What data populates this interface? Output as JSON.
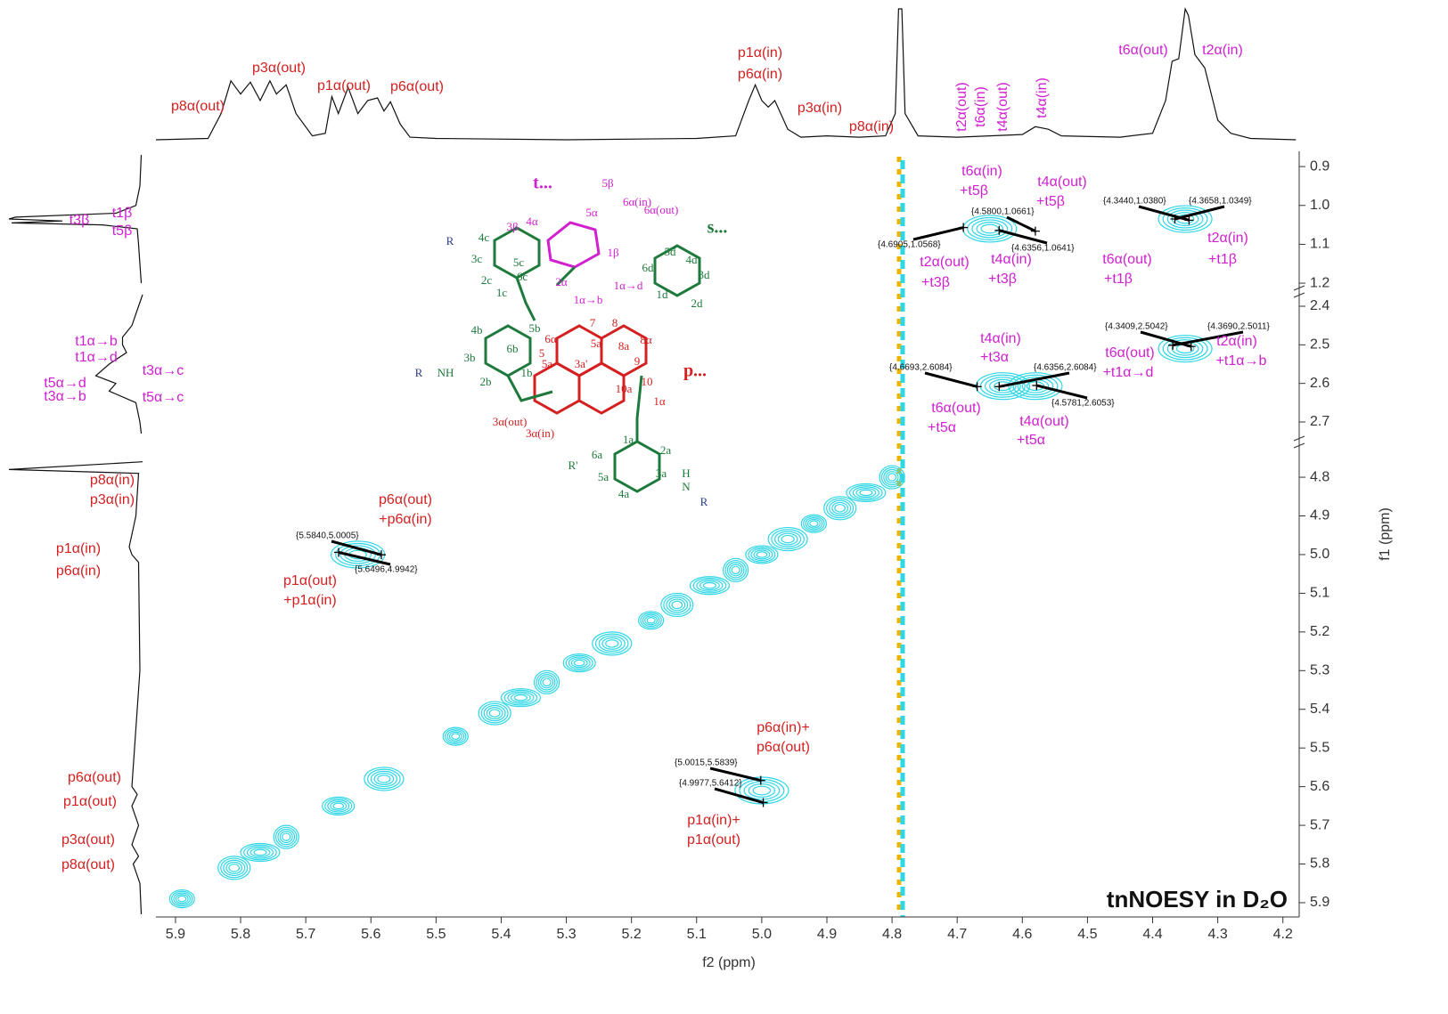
{
  "chart_data": {
    "type": "nmr2d",
    "title": "tnNOESY in D₂O",
    "xlabel": "f2 (ppm)",
    "ylabel": "f1 (ppm)",
    "xlim": [
      5.93,
      4.175
    ],
    "xticks": [
      5.9,
      5.8,
      5.7,
      5.6,
      5.5,
      5.4,
      5.3,
      5.2,
      5.1,
      {
        "value": 5,
        "label": "5.0"
      },
      4.9,
      4.8,
      4.7,
      4.6,
      4.5,
      4.4,
      4.3,
      4.2
    ],
    "y_segments": [
      {
        "ylim": [
          0.87,
          1.225
        ],
        "yticks": [
          0.9,
          {
            "value": 1,
            "label": "1.0"
          },
          1.1,
          1.2
        ]
      },
      {
        "ylim": [
          2.37,
          2.73
        ],
        "yticks": [
          2.4,
          2.5,
          2.6,
          2.7
        ]
      },
      {
        "ylim": [
          4.74,
          5.93
        ],
        "yticks": [
          4.8,
          4.9,
          {
            "value": 5,
            "label": "5.0"
          },
          5.1,
          5.2,
          5.3,
          5.4,
          5.5,
          5.6,
          5.7,
          5.8,
          5.9
        ]
      }
    ],
    "top_projection": {
      "x": [
        5.93,
        5.85,
        5.83,
        5.815,
        5.8,
        5.785,
        5.77,
        5.755,
        5.745,
        5.73,
        5.715,
        5.69,
        5.67,
        5.66,
        5.65,
        5.635,
        5.62,
        5.605,
        5.59,
        5.58,
        5.57,
        5.555,
        5.54,
        5.5,
        5.3,
        5.1,
        5.04,
        5.02,
        5.01,
        5.0,
        4.99,
        4.98,
        4.96,
        4.94,
        4.9,
        4.85,
        4.81,
        4.795,
        4.79,
        4.785,
        4.78,
        4.76,
        4.7,
        4.65,
        4.6,
        4.58,
        4.56,
        4.54,
        4.45,
        4.4,
        4.38,
        4.37,
        4.36,
        4.35,
        4.345,
        4.335,
        4.32,
        4.3,
        4.28,
        4.25,
        4.18
      ],
      "values": [
        0,
        1,
        20,
        45,
        35,
        44,
        30,
        45,
        35,
        42,
        20,
        3,
        5,
        33,
        20,
        40,
        20,
        30,
        32,
        22,
        29,
        12,
        2,
        1,
        0,
        1,
        3,
        30,
        42,
        30,
        25,
        30,
        8,
        2,
        3,
        2,
        3,
        20,
        100,
        100,
        20,
        3,
        2,
        3,
        4,
        10,
        8,
        3,
        2,
        5,
        30,
        60,
        62,
        100,
        95,
        65,
        55,
        15,
        5,
        1,
        0
      ],
      "color": "#111111"
    },
    "left_projection": {
      "y": [
        0.87,
        0.95,
        1.0,
        1.02,
        1.03,
        1.035,
        1.04,
        1.045,
        1.05,
        1.06,
        1.1,
        1.15,
        1.2,
        null,
        2.37,
        2.4,
        2.45,
        2.48,
        2.5,
        2.52,
        2.55,
        2.58,
        2.6,
        2.62,
        2.65,
        2.7,
        2.73,
        null,
        4.76,
        4.78,
        4.79,
        4.9,
        4.98,
        5.0,
        5.02,
        5.3,
        5.6,
        5.62,
        5.65,
        5.7,
        5.75,
        5.78,
        5.8,
        5.85,
        5.93
      ],
      "values": [
        1,
        2,
        5,
        20,
        95,
        100,
        60,
        98,
        30,
        4,
        3,
        2,
        1,
        null,
        0,
        3,
        8,
        15,
        15,
        12,
        25,
        35,
        20,
        25,
        5,
        2,
        1,
        null,
        0,
        100,
        3,
        5,
        10,
        8,
        3,
        2,
        8,
        4,
        8,
        3,
        8,
        3,
        7,
        2,
        1
      ],
      "color": "#111111"
    },
    "contour_peaks": {
      "x": [
        5.89,
        5.81,
        5.77,
        5.73,
        5.65,
        5.58,
        5.47,
        5.41,
        5.37,
        5.33,
        5.28,
        5.23,
        5.17,
        5.13,
        5.08,
        5.04,
        5.0,
        4.96,
        4.92,
        4.88,
        4.84,
        4.8,
        4.65,
        4.35,
        4.63,
        4.58,
        4.35,
        5.62,
        5.0
      ],
      "values": [
        5.89,
        5.81,
        5.77,
        5.73,
        5.65,
        5.58,
        5.47,
        5.41,
        5.37,
        5.33,
        5.28,
        5.23,
        5.17,
        5.13,
        5.08,
        5.04,
        5.0,
        4.96,
        4.92,
        4.88,
        4.84,
        4.8,
        1.06,
        1.035,
        2.607,
        2.607,
        2.51,
        5.0,
        5.61
      ],
      "color": "#2ed6e6"
    },
    "cross_peaks": {
      "x": [
        4.6905,
        4.58,
        4.6356,
        4.344,
        4.3658,
        4.3409,
        4.369,
        4.6693,
        4.6356,
        4.5781,
        5.584,
        5.6496,
        5.0015,
        4.9977
      ],
      "values": [
        1.0568,
        1.0661,
        1.0641,
        1.038,
        1.0349,
        2.5042,
        2.5011,
        2.6084,
        2.6084,
        2.6053,
        5.0005,
        4.9942,
        5.5839,
        5.6412
      ],
      "value_labels": [
        "{4.6905,1.0568}",
        "{4.5800,1.0661}",
        "{4.6356,1.0641}",
        "{4.3440,1.0380}",
        "{4.3658,1.0349}",
        "{4.3409,2.5042}",
        "{4.3690,2.5011}",
        "{4.6693,2.6084}",
        "{4.6356,2.6084}",
        "{4.5781,2.6053}",
        "{5.5840,5.0005}",
        "{5.6496,4.9942}",
        "{5.0015,5.5839}",
        "{4.9977,5.6412}"
      ],
      "color": "#000000"
    },
    "annotations": [
      {
        "text": "p8α(out)",
        "color": "#d42020"
      },
      {
        "text": "p3α(out)",
        "color": "#d42020"
      },
      {
        "text": "p1α(out)",
        "color": "#d42020"
      },
      {
        "text": "p6α(out)",
        "color": "#d42020"
      },
      {
        "text": "p1α(in)",
        "color": "#d42020"
      },
      {
        "text": "p6α(in)",
        "color": "#d42020"
      },
      {
        "text": "p3α(in)",
        "color": "#d42020"
      },
      {
        "text": "p8α(in)",
        "color": "#d42020"
      },
      {
        "text": "t2α(out)",
        "color": "#d020d0"
      },
      {
        "text": "t6α(in)",
        "color": "#d020d0"
      },
      {
        "text": "t4α(out)",
        "color": "#d020d0"
      },
      {
        "text": "t4α(in)",
        "color": "#d020d0"
      },
      {
        "text": "t6α(out)",
        "color": "#d020d0"
      },
      {
        "text": "t2α(in)",
        "color": "#d020d0"
      },
      {
        "text": "t3β",
        "color": "#d020d0"
      },
      {
        "text": "t1β",
        "color": "#d020d0"
      },
      {
        "text": "t5β",
        "color": "#d020d0"
      },
      {
        "text": "t1α→b",
        "color": "#d020d0"
      },
      {
        "text": "t1α→d",
        "color": "#d020d0"
      },
      {
        "text": "t3α→c",
        "color": "#d020d0"
      },
      {
        "text": "t5α→d",
        "color": "#d020d0"
      },
      {
        "text": "t3α→b",
        "color": "#d020d0"
      },
      {
        "text": "t5α→c",
        "color": "#d020d0"
      },
      {
        "text": "p8α(in)",
        "color": "#d42020"
      },
      {
        "text": "p3α(in)",
        "color": "#d42020"
      },
      {
        "text": "p1α(in)",
        "color": "#d42020"
      },
      {
        "text": "p6α(in)",
        "color": "#d42020"
      },
      {
        "text": "p6α(out)",
        "color": "#d42020"
      },
      {
        "text": "p1α(out)",
        "color": "#d42020"
      },
      {
        "text": "p3α(out)",
        "color": "#d42020"
      },
      {
        "text": "p8α(out)",
        "color": "#d42020"
      },
      {
        "text": "t6α(in)",
        "color": "#d020d0"
      },
      {
        "text": "+t5β",
        "color": "#d020d0"
      },
      {
        "text": "t4α(out)",
        "color": "#d020d0"
      },
      {
        "text": "+t5β",
        "color": "#d020d0"
      },
      {
        "text": "t2α(out)",
        "color": "#d020d0"
      },
      {
        "text": "+t3β",
        "color": "#d020d0"
      },
      {
        "text": "t4α(in)",
        "color": "#d020d0"
      },
      {
        "text": "+t3β",
        "color": "#d020d0"
      },
      {
        "text": "t6α(out)",
        "color": "#d020d0"
      },
      {
        "text": "+t1β",
        "color": "#d020d0"
      },
      {
        "text": "t2α(in)",
        "color": "#d020d0"
      },
      {
        "text": "+t1β",
        "color": "#d020d0"
      },
      {
        "text": "t4α(in)",
        "color": "#d020d0"
      },
      {
        "text": "+t3α",
        "color": "#d020d0"
      },
      {
        "text": "t6α(out)",
        "color": "#d020d0"
      },
      {
        "text": "+t5α",
        "color": "#d020d0"
      },
      {
        "text": "t4α(out)",
        "color": "#d020d0"
      },
      {
        "text": "+t5α",
        "color": "#d020d0"
      },
      {
        "text": "t6α(out)",
        "color": "#d020d0"
      },
      {
        "text": "+t1α→d",
        "color": "#d020d0"
      },
      {
        "text": "t2α(in)",
        "color": "#d020d0"
      },
      {
        "text": "+t1α→b",
        "color": "#d020d0"
      },
      {
        "text": "p6α(out)",
        "color": "#d42020"
      },
      {
        "text": "+p6α(in)",
        "color": "#d42020"
      },
      {
        "text": "p1α(out)",
        "color": "#d42020"
      },
      {
        "text": "+p1α(in)",
        "color": "#d42020"
      },
      {
        "text": "p6α(in)+",
        "color": "#d42020"
      },
      {
        "text": "p6α(out)",
        "color": "#d42020"
      },
      {
        "text": "p1α(in)+",
        "color": "#d42020"
      },
      {
        "text": "p1α(out)",
        "color": "#d42020"
      }
    ],
    "structure": {
      "labels": [
        {
          "text": "t...",
          "color": "#d020d0"
        },
        {
          "text": "5β",
          "color": "#d020d0"
        },
        {
          "text": "6α(in)",
          "color": "#d020d0"
        },
        {
          "text": "6α(out)",
          "color": "#d020d0"
        },
        {
          "text": "5α",
          "color": "#d020d0"
        },
        {
          "text": "4α",
          "color": "#d020d0"
        },
        {
          "text": "3β",
          "color": "#d020d0"
        },
        {
          "text": "s...",
          "color": "#1e7a3c"
        },
        {
          "text": "p...",
          "color": "#d42020"
        },
        {
          "text": "R",
          "color": "#2b3a8a"
        },
        {
          "text": "4c",
          "color": "#1e7a3c"
        },
        {
          "text": "3c",
          "color": "#1e7a3c"
        },
        {
          "text": "5c",
          "color": "#1e7a3c"
        },
        {
          "text": "6c",
          "color": "#1e7a3c"
        },
        {
          "text": "2c",
          "color": "#1e7a3c"
        },
        {
          "text": "1c",
          "color": "#1e7a3c"
        },
        {
          "text": "2α",
          "color": "#d020d0"
        },
        {
          "text": "1β",
          "color": "#d020d0"
        },
        {
          "text": "1α→b",
          "color": "#d020d0"
        },
        {
          "text": "1α→d",
          "color": "#d020d0"
        },
        {
          "text": "5d",
          "color": "#1e7a3c"
        },
        {
          "text": "4d",
          "color": "#1e7a3c"
        },
        {
          "text": "6d",
          "color": "#1e7a3c"
        },
        {
          "text": "3d",
          "color": "#1e7a3c"
        },
        {
          "text": "2d",
          "color": "#1e7a3c"
        },
        {
          "text": "1d",
          "color": "#1e7a3c"
        },
        {
          "text": "4b",
          "color": "#1e7a3c"
        },
        {
          "text": "3b",
          "color": "#1e7a3c"
        },
        {
          "text": "6b",
          "color": "#1e7a3c"
        },
        {
          "text": "5b",
          "color": "#1e7a3c"
        },
        {
          "text": "1b",
          "color": "#1e7a3c"
        },
        {
          "text": "2b",
          "color": "#1e7a3c"
        },
        {
          "text": "R",
          "color": "#2b3a8a"
        },
        {
          "text": "NH",
          "color": "#1e7a3c"
        },
        {
          "text": "7",
          "color": "#d42020"
        },
        {
          "text": "8",
          "color": "#d42020"
        },
        {
          "text": "5a'",
          "color": "#d42020"
        },
        {
          "text": "8a",
          "color": "#d42020"
        },
        {
          "text": "8α",
          "color": "#d42020"
        },
        {
          "text": "6α",
          "color": "#d42020"
        },
        {
          "text": "5",
          "color": "#d42020"
        },
        {
          "text": "5a",
          "color": "#d42020"
        },
        {
          "text": "3a'",
          "color": "#d42020"
        },
        {
          "text": "9",
          "color": "#d42020"
        },
        {
          "text": "10",
          "color": "#d42020"
        },
        {
          "text": "10a",
          "color": "#d42020"
        },
        {
          "text": "1α",
          "color": "#d42020"
        },
        {
          "text": "3α(out)",
          "color": "#d42020"
        },
        {
          "text": "3α(in)",
          "color": "#d42020"
        },
        {
          "text": "6a",
          "color": "#1e7a3c"
        },
        {
          "text": "1a",
          "color": "#1e7a3c"
        },
        {
          "text": "2a",
          "color": "#1e7a3c"
        },
        {
          "text": "3a",
          "color": "#1e7a3c"
        },
        {
          "text": "5a",
          "color": "#1e7a3c"
        },
        {
          "text": "4a",
          "color": "#1e7a3c"
        },
        {
          "text": "R'",
          "color": "#1e7a3c"
        },
        {
          "text": "R",
          "color": "#2b3a8a"
        },
        {
          "text": "H",
          "color": "#1e7a3c"
        },
        {
          "text": "N",
          "color": "#1e7a3c"
        }
      ]
    }
  }
}
